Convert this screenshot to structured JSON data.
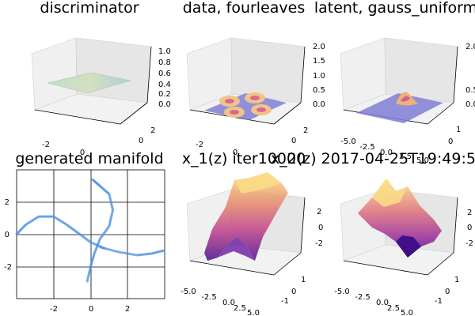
{
  "colors": {
    "surface_blue": "#8080d8",
    "manifold_point": "#4a90e2",
    "plasma_light": "#f7d27a",
    "plasma_mid": "#d5507a",
    "plasma_dark": "#4b0c8c",
    "pane": "#ebebeb",
    "grid": "#d0d0d0"
  },
  "chart_data": [
    {
      "type": "surface3d",
      "title": "discriminator",
      "xticks": [
        "-2",
        "0",
        "2"
      ],
      "yticks": [
        "-2",
        "0",
        "2"
      ],
      "zticks": [
        "0.0",
        "0.2",
        "0.4",
        "0.6",
        "0.8",
        "1.0"
      ],
      "zlim": [
        0,
        1
      ],
      "surface": "nearly flat plane near z=0.4, green-yellow tint",
      "xlabel": "",
      "ylabel": "",
      "zlabel": ""
    },
    {
      "type": "surface3d",
      "title": "data, fourleaves",
      "xticks": [
        "-2",
        "0",
        "2"
      ],
      "yticks": [
        "-2",
        "0",
        "2"
      ],
      "zticks": [
        "0.0",
        "0.5",
        "1.0",
        "1.5",
        "2.0"
      ],
      "zlim": [
        0,
        2
      ],
      "surface": "four bright leaf-shaped bumps on a flat blue plane"
    },
    {
      "type": "surface3d",
      "title": "latent, gauss_uniform",
      "xticks": [
        "-5.0",
        "-2.5",
        "0.0",
        "2.5",
        "5.0"
      ],
      "yticks": [
        "-1",
        "0",
        "1"
      ],
      "zticks": [
        "0.0",
        "0.5",
        "1.0",
        "1.5",
        "2.0"
      ],
      "zlim": [
        0,
        2
      ],
      "surface": "single small peak near center on a flat blue plane"
    },
    {
      "type": "scatter",
      "title": "generated manifold",
      "xticks": [
        "-2",
        "0",
        "2"
      ],
      "yticks": [
        "2",
        "0",
        "-2"
      ],
      "xlim": [
        -4,
        4
      ],
      "ylim": [
        -4,
        4
      ],
      "grid": true,
      "curves": [
        {
          "name": "",
          "points": [
            [
              0.1,
              3.4
            ],
            [
              0.5,
              3.0
            ],
            [
              1.0,
              2.5
            ],
            [
              1.2,
              1.5
            ],
            [
              1.0,
              0.5
            ],
            [
              0.5,
              -0.3
            ],
            [
              0.2,
              -1.2
            ],
            [
              0.0,
              -2.0
            ],
            [
              -0.2,
              -3.0
            ]
          ]
        },
        {
          "name": "",
          "points": [
            [
              -4.0,
              0.0
            ],
            [
              -3.5,
              0.6
            ],
            [
              -2.8,
              1.1
            ],
            [
              -2.0,
              1.1
            ],
            [
              -1.3,
              0.6
            ],
            [
              -0.7,
              0.1
            ],
            [
              0.0,
              -0.5
            ],
            [
              0.8,
              -0.9
            ]
          ]
        },
        {
          "name": "",
          "points": [
            [
              0.5,
              -0.8
            ],
            [
              1.5,
              -1.1
            ],
            [
              2.5,
              -1.3
            ],
            [
              3.3,
              -1.2
            ],
            [
              4.0,
              -1.0
            ]
          ]
        }
      ]
    },
    {
      "type": "surface3d",
      "title": "x_1(z) iter10000",
      "xticks": [
        "-5.0",
        "-2.5",
        "0.0",
        "2.5",
        "5.0"
      ],
      "yticks": [
        "-1",
        "0",
        "1"
      ],
      "zticks": [
        "2",
        "0",
        "-2"
      ],
      "colormap": "plasma",
      "surface": "folded sheet with high yellow ridge at back and deep purple troughs"
    },
    {
      "type": "surface3d",
      "title": "x_2(z) 2017-04-25T19:49:54",
      "xticks": [
        "-5.0",
        "-2.5",
        "0.0",
        "2.5",
        "5.0"
      ],
      "yticks": [
        "-1",
        "0",
        "1"
      ],
      "zticks": [
        "2",
        "0",
        "-2"
      ],
      "colormap": "plasma",
      "surface": "wavy sheet with yellow peaks and a deep purple trough near front"
    }
  ]
}
